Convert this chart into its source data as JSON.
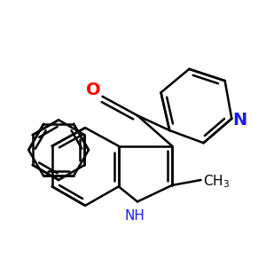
{
  "background_color": "#ffffff",
  "bond_lw": 1.8,
  "figsize": [
    3.0,
    3.0
  ],
  "dpi": 100,
  "xlim": [
    0.0,
    1.0
  ],
  "ylim": [
    0.0,
    1.0
  ]
}
